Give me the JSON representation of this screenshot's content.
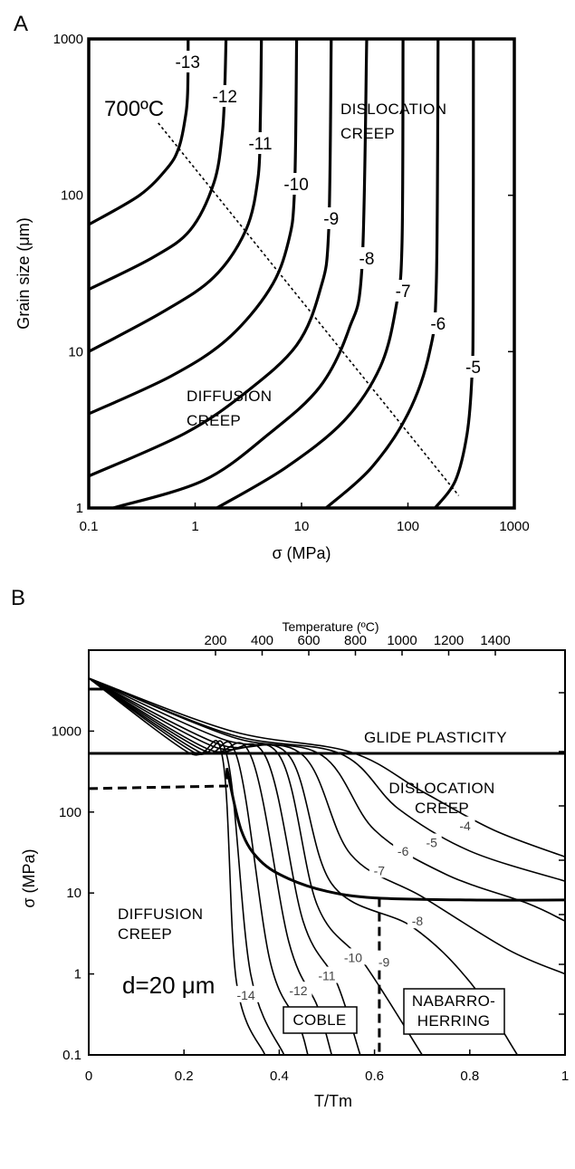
{
  "chart_data": [
    {
      "panel": "A",
      "type": "line",
      "xlabel": "σ (MPa)",
      "ylabel": "Grain size (μm)",
      "xscale": "log",
      "yscale": "log",
      "xlim": [
        0.1,
        1000
      ],
      "ylim": [
        1,
        1000
      ],
      "x_ticks": [
        "0.1",
        "1",
        "10",
        "100",
        "1000"
      ],
      "y_ticks": [
        "1",
        "10",
        "100",
        "1000"
      ],
      "temperature_label": "700ºC",
      "regions": [
        "DISLOCATION CREEP",
        "DIFFUSION CREEP"
      ],
      "boundary_line": {
        "style": "dotted",
        "x": [
          0.45,
          300
        ],
        "y": [
          290,
          1.2
        ]
      },
      "series": [
        {
          "name": "-13",
          "stress_limit": 0.85,
          "points": [
            [
              0.1,
              65
            ],
            [
              0.3,
              100
            ],
            [
              0.55,
              150
            ],
            [
              0.7,
              200
            ],
            [
              0.8,
              300
            ],
            [
              0.85,
              450
            ],
            [
              0.86,
              1000
            ]
          ]
        },
        {
          "name": "-12",
          "stress_limit": 1.9,
          "points": [
            [
              0.1,
              25
            ],
            [
              0.4,
              40
            ],
            [
              0.9,
              60
            ],
            [
              1.5,
              120
            ],
            [
              1.8,
              250
            ],
            [
              1.9,
              500
            ],
            [
              1.95,
              1000
            ]
          ]
        },
        {
          "name": "-11",
          "stress_limit": 4.1,
          "points": [
            [
              0.1,
              10
            ],
            [
              0.5,
              18
            ],
            [
              1.5,
              30
            ],
            [
              3,
              60
            ],
            [
              3.9,
              130
            ],
            [
              4.1,
              300
            ],
            [
              4.2,
              1000
            ]
          ]
        },
        {
          "name": "-10",
          "stress_limit": 8.9,
          "points": [
            [
              0.1,
              4
            ],
            [
              0.6,
              7
            ],
            [
              2,
              12
            ],
            [
              5,
              25
            ],
            [
              7.5,
              50
            ],
            [
              8.6,
              110
            ],
            [
              9,
              1000
            ]
          ]
        },
        {
          "name": "-9",
          "stress_limit": 19,
          "points": [
            [
              0.1,
              1.6
            ],
            [
              0.8,
              3
            ],
            [
              3,
              5.5
            ],
            [
              9,
              11
            ],
            [
              15,
              25
            ],
            [
              18,
              60
            ],
            [
              19,
              1000
            ]
          ]
        },
        {
          "name": "-8",
          "stress_limit": 41,
          "points": [
            [
              0.17,
              1
            ],
            [
              1.2,
              1.5
            ],
            [
              5,
              3
            ],
            [
              15,
              6
            ],
            [
              28,
              14
            ],
            [
              37,
              35
            ],
            [
              41,
              1000
            ]
          ]
        },
        {
          "name": "-7",
          "stress_limit": 90,
          "points": [
            [
              1.6,
              1
            ],
            [
              7,
              1.8
            ],
            [
              25,
              3.6
            ],
            [
              55,
              8
            ],
            [
              78,
              20
            ],
            [
              88,
              50
            ],
            [
              90,
              1000
            ]
          ]
        },
        {
          "name": "-6",
          "stress_limit": 192,
          "points": [
            [
              17,
              1
            ],
            [
              45,
              1.8
            ],
            [
              100,
              4
            ],
            [
              160,
              10
            ],
            [
              185,
              28
            ],
            [
              192,
              1000
            ]
          ]
        },
        {
          "name": "-5",
          "stress_limit": 410,
          "points": [
            [
              180,
              1
            ],
            [
              280,
              1.5
            ],
            [
              360,
              3
            ],
            [
              400,
              7
            ],
            [
              410,
              20
            ],
            [
              412,
              1000
            ]
          ]
        }
      ]
    },
    {
      "panel": "B",
      "type": "line",
      "xlabel": "T/Tm",
      "ylabel": "σ (MPa)",
      "top_axis_label": "Temperature (ºC)",
      "xlim": [
        0,
        1
      ],
      "yscale": "log",
      "ylim": [
        0.1,
        10000
      ],
      "x_ticks": [
        "0",
        "0.2",
        "0.4",
        "0.6",
        "0.8",
        "1"
      ],
      "y_ticks": [
        "0.1",
        "1",
        "10",
        "100",
        "1000"
      ],
      "top_ticks": [
        "200",
        "400",
        "600",
        "800",
        "1000",
        "1200",
        "1400"
      ],
      "regions": [
        "GLIDE PLASTICITY",
        "DISLOCATION CREEP",
        "DIFFUSION CREEP",
        "COBLE",
        "NABARRO-HERRING"
      ],
      "grain_size_label": "d=20 μm",
      "contour_labels": [
        {
          "text": "-4",
          "x": 0.79,
          "y": 68
        },
        {
          "text": "-5",
          "x": 0.72,
          "y": 42
        },
        {
          "text": "-6",
          "x": 0.66,
          "y": 33
        },
        {
          "text": "-7",
          "x": 0.61,
          "y": 19
        },
        {
          "text": "-8",
          "x": 0.69,
          "y": 4.5
        },
        {
          "text": "-9",
          "x": 0.62,
          "y": 1.4
        },
        {
          "text": "-10",
          "x": 0.555,
          "y": 1.6
        },
        {
          "text": "-11",
          "x": 0.5,
          "y": 0.95
        },
        {
          "text": "-12",
          "x": 0.44,
          "y": 0.62
        },
        {
          "text": "-14",
          "x": 0.33,
          "y": 0.55
        }
      ],
      "boundaries": [
        {
          "name": "glide/dislocation",
          "style": "solid",
          "points": [
            [
              0,
              530
            ],
            [
              1,
              530
            ]
          ]
        },
        {
          "name": "dislocation/diffusion",
          "style": "solid",
          "points": [
            [
              0.29,
              350
            ],
            [
              0.32,
              60
            ],
            [
              0.36,
              25
            ],
            [
              0.42,
              15
            ],
            [
              0.5,
              10.5
            ],
            [
              0.6,
              8.7
            ],
            [
              0.8,
              8.2
            ],
            [
              1,
              8.2
            ]
          ]
        },
        {
          "name": "low-temperature limit",
          "style": "dashed",
          "points": [
            [
              0,
              195
            ],
            [
              0.29,
              210
            ],
            [
              0.29,
              350
            ]
          ]
        },
        {
          "name": "Coble/Nabarro-Herring",
          "style": "dashed",
          "points": [
            [
              0.61,
              8.7
            ],
            [
              0.61,
              0.1
            ]
          ]
        },
        {
          "name": "short marker",
          "style": "solid",
          "points": [
            [
              0,
              3300
            ],
            [
              0.03,
              3300
            ]
          ]
        }
      ],
      "contours": [
        {
          "name": "-4",
          "points": [
            [
              0,
              4500
            ],
            [
              0.3,
              1000
            ],
            [
              0.55,
              550
            ],
            [
              0.7,
              180
            ],
            [
              0.85,
              60
            ],
            [
              1,
              28
            ]
          ]
        },
        {
          "name": "-5",
          "points": [
            [
              0,
              4500
            ],
            [
              0.3,
              900
            ],
            [
              0.53,
              520
            ],
            [
              0.65,
              110
            ],
            [
              0.8,
              33
            ],
            [
              1,
              14
            ]
          ]
        },
        {
          "name": "-6",
          "points": [
            [
              0,
              4500
            ],
            [
              0.3,
              850
            ],
            [
              0.49,
              500
            ],
            [
              0.6,
              60
            ],
            [
              0.75,
              17
            ],
            [
              0.92,
              7.5
            ],
            [
              1,
              4.5
            ]
          ]
        },
        {
          "name": "-7",
          "points": [
            [
              0,
              4500
            ],
            [
              0.28,
              800
            ],
            [
              0.45,
              500
            ],
            [
              0.55,
              30
            ],
            [
              0.7,
              9
            ],
            [
              0.88,
              2
            ],
            [
              1,
              1
            ]
          ]
        },
        {
          "name": "-8",
          "points": [
            [
              0,
              4500
            ],
            [
              0.27,
              700
            ],
            [
              0.42,
              500
            ],
            [
              0.51,
              13
            ],
            [
              0.68,
              3.8
            ],
            [
              0.8,
              0.8
            ],
            [
              0.9,
              0.1
            ]
          ]
        },
        {
          "name": "-9",
          "points": [
            [
              0,
              4500
            ],
            [
              0.26,
              650
            ],
            [
              0.4,
              500
            ],
            [
              0.48,
              7
            ],
            [
              0.58,
              1.3
            ],
            [
              0.7,
              0.1
            ]
          ]
        },
        {
          "name": "-10",
          "points": [
            [
              0,
              4500
            ],
            [
              0.25,
              600
            ],
            [
              0.37,
              500
            ],
            [
              0.45,
              4.5
            ],
            [
              0.52,
              0.8
            ],
            [
              0.57,
              0.1
            ]
          ]
        },
        {
          "name": "-11",
          "points": [
            [
              0,
              4500
            ],
            [
              0.24,
              580
            ],
            [
              0.34,
              500
            ],
            [
              0.42,
              2.5
            ],
            [
              0.48,
              0.4
            ],
            [
              0.51,
              0.1
            ]
          ]
        },
        {
          "name": "-12",
          "points": [
            [
              0,
              4500
            ],
            [
              0.23,
              560
            ],
            [
              0.31,
              500
            ],
            [
              0.38,
              1.5
            ],
            [
              0.44,
              0.25
            ],
            [
              0.46,
              0.1
            ]
          ]
        },
        {
          "name": "-13",
          "points": [
            [
              0,
              4500
            ],
            [
              0.22,
              550
            ],
            [
              0.29,
              500
            ],
            [
              0.34,
              1
            ],
            [
              0.41,
              0.1
            ]
          ]
        },
        {
          "name": "-14",
          "points": [
            [
              0,
              4500
            ],
            [
              0.21,
              540
            ],
            [
              0.28,
              500
            ],
            [
              0.31,
              0.8
            ],
            [
              0.37,
              0.1
            ]
          ]
        }
      ]
    }
  ]
}
